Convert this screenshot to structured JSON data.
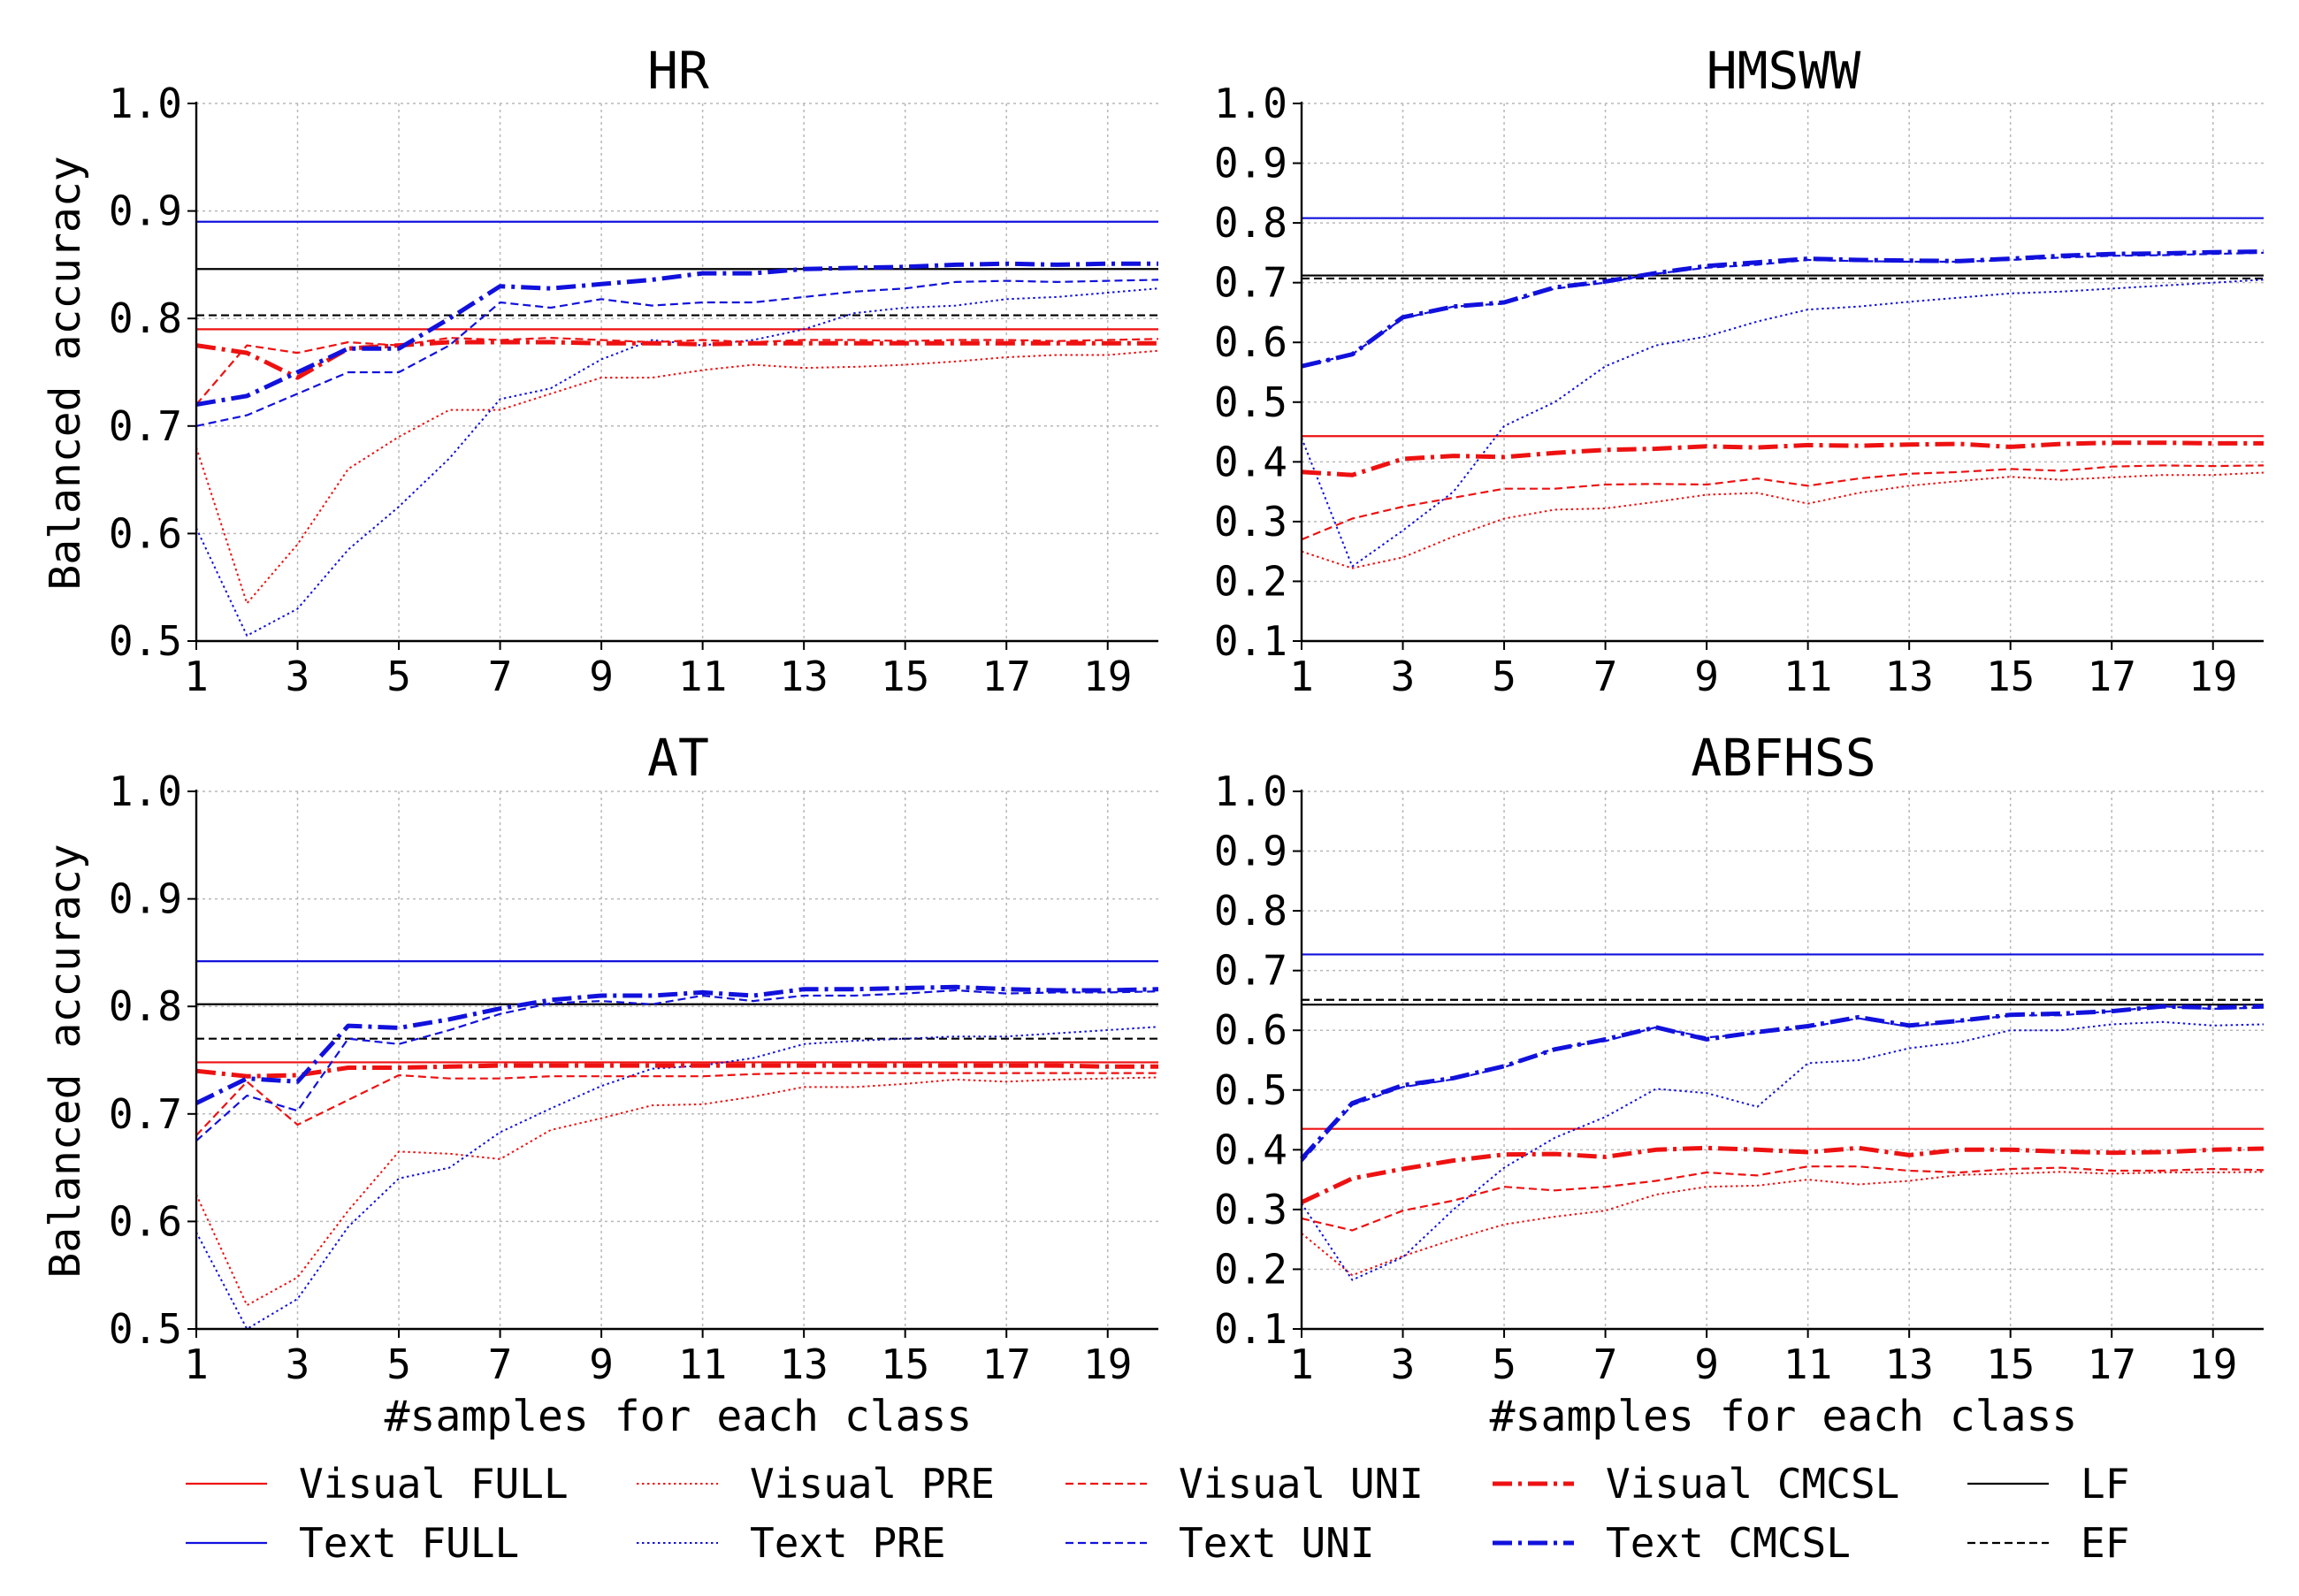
{
  "legend": [
    {
      "label": "Visual FULL",
      "color": "#ee1111",
      "style": "full"
    },
    {
      "label": "Visual PRE",
      "color": "#ee1111",
      "style": "pre"
    },
    {
      "label": "Visual UNI",
      "color": "#ee1111",
      "style": "uni"
    },
    {
      "label": "Visual CMCSL",
      "color": "#ee1111",
      "style": "cmcsl"
    },
    {
      "label": "LF",
      "color": "#000000",
      "style": "full"
    },
    {
      "label": "Text FULL",
      "color": "#1111dd",
      "style": "full"
    },
    {
      "label": "Text PRE",
      "color": "#1111dd",
      "style": "pre"
    },
    {
      "label": "Text UNI",
      "color": "#1111dd",
      "style": "uni"
    },
    {
      "label": "Text CMCSL",
      "color": "#1111dd",
      "style": "cmcsl"
    },
    {
      "label": "EF",
      "color": "#000000",
      "style": "uni"
    }
  ],
  "chart_data": [
    {
      "type": "line",
      "title": "HR",
      "xlabel": "",
      "ylabel": "Balanced accuracy",
      "xlim": [
        1,
        20
      ],
      "ylim": [
        0.5,
        1.0
      ],
      "xticks": [
        "1",
        "3",
        "5",
        "7",
        "9",
        "11",
        "13",
        "15",
        "17",
        "19"
      ],
      "yticks": [
        "0.5",
        "0.6",
        "0.7",
        "0.8",
        "0.9",
        "1.0"
      ],
      "grid": true,
      "x": [
        1,
        2,
        3,
        4,
        5,
        6,
        7,
        8,
        9,
        10,
        11,
        12,
        13,
        14,
        15,
        16,
        17,
        18,
        19,
        20
      ],
      "hlines": [
        {
          "name": "Visual FULL",
          "value": 0.79,
          "color": "#ee1111",
          "style": "full"
        },
        {
          "name": "Text FULL",
          "value": 0.89,
          "color": "#1111dd",
          "style": "full"
        },
        {
          "name": "LF",
          "value": 0.846,
          "color": "#000000",
          "style": "full"
        },
        {
          "name": "EF",
          "value": 0.803,
          "color": "#000000",
          "style": "uni"
        }
      ],
      "series": [
        {
          "name": "Visual PRE",
          "color": "#ee1111",
          "style": "pre",
          "values": [
            0.68,
            0.535,
            0.59,
            0.66,
            0.69,
            0.715,
            0.715,
            0.73,
            0.745,
            0.745,
            0.752,
            0.757,
            0.754,
            0.755,
            0.757,
            0.76,
            0.764,
            0.766,
            0.766,
            0.77
          ]
        },
        {
          "name": "Text PRE",
          "color": "#1111dd",
          "style": "pre",
          "values": [
            0.605,
            0.505,
            0.53,
            0.585,
            0.625,
            0.67,
            0.725,
            0.735,
            0.762,
            0.78,
            0.775,
            0.78,
            0.79,
            0.805,
            0.81,
            0.812,
            0.818,
            0.82,
            0.824,
            0.828
          ]
        },
        {
          "name": "Visual UNI",
          "color": "#ee1111",
          "style": "uni",
          "values": [
            0.72,
            0.775,
            0.768,
            0.778,
            0.775,
            0.782,
            0.78,
            0.782,
            0.78,
            0.778,
            0.78,
            0.778,
            0.78,
            0.78,
            0.779,
            0.78,
            0.78,
            0.779,
            0.78,
            0.781
          ]
        },
        {
          "name": "Text UNI",
          "color": "#1111dd",
          "style": "uni",
          "values": [
            0.7,
            0.71,
            0.73,
            0.75,
            0.75,
            0.775,
            0.815,
            0.81,
            0.818,
            0.812,
            0.815,
            0.815,
            0.82,
            0.825,
            0.828,
            0.834,
            0.835,
            0.834,
            0.835,
            0.836
          ]
        },
        {
          "name": "Visual CMCSL",
          "color": "#ee1111",
          "style": "cmcsl",
          "values": [
            0.775,
            0.768,
            0.745,
            0.772,
            0.775,
            0.778,
            0.778,
            0.778,
            0.777,
            0.777,
            0.776,
            0.777,
            0.777,
            0.777,
            0.777,
            0.777,
            0.777,
            0.777,
            0.777,
            0.777
          ]
        },
        {
          "name": "Text CMCSL",
          "color": "#1111dd",
          "style": "cmcsl",
          "values": [
            0.72,
            0.728,
            0.75,
            0.772,
            0.772,
            0.8,
            0.83,
            0.828,
            0.832,
            0.836,
            0.842,
            0.842,
            0.846,
            0.847,
            0.848,
            0.85,
            0.851,
            0.85,
            0.851,
            0.851
          ]
        }
      ]
    },
    {
      "type": "line",
      "title": "HMSWW",
      "xlabel": "",
      "ylabel": "",
      "xlim": [
        1,
        20
      ],
      "ylim": [
        0.1,
        1.0
      ],
      "xticks": [
        "1",
        "3",
        "5",
        "7",
        "9",
        "11",
        "13",
        "15",
        "17",
        "19"
      ],
      "yticks": [
        "0.1",
        "0.2",
        "0.3",
        "0.4",
        "0.5",
        "0.6",
        "0.7",
        "0.8",
        "0.9",
        "1.0"
      ],
      "grid": true,
      "x": [
        1,
        2,
        3,
        4,
        5,
        6,
        7,
        8,
        9,
        10,
        11,
        12,
        13,
        14,
        15,
        16,
        17,
        18,
        19,
        20
      ],
      "hlines": [
        {
          "name": "Visual FULL",
          "value": 0.443,
          "color": "#ee1111",
          "style": "full"
        },
        {
          "name": "Text FULL",
          "value": 0.808,
          "color": "#1111dd",
          "style": "full"
        },
        {
          "name": "LF",
          "value": 0.712,
          "color": "#000000",
          "style": "full"
        },
        {
          "name": "EF",
          "value": 0.707,
          "color": "#000000",
          "style": "uni"
        }
      ],
      "series": [
        {
          "name": "Visual PRE",
          "color": "#ee1111",
          "style": "pre",
          "values": [
            0.25,
            0.222,
            0.24,
            0.275,
            0.305,
            0.32,
            0.322,
            0.333,
            0.345,
            0.348,
            0.33,
            0.348,
            0.36,
            0.368,
            0.375,
            0.37,
            0.374,
            0.378,
            0.378,
            0.382
          ]
        },
        {
          "name": "Text PRE",
          "color": "#1111dd",
          "style": "pre",
          "values": [
            0.44,
            0.225,
            0.285,
            0.35,
            0.46,
            0.5,
            0.56,
            0.595,
            0.61,
            0.635,
            0.655,
            0.66,
            0.668,
            0.675,
            0.682,
            0.685,
            0.69,
            0.695,
            0.7,
            0.705
          ]
        },
        {
          "name": "Visual UNI",
          "color": "#ee1111",
          "style": "uni",
          "values": [
            0.27,
            0.305,
            0.325,
            0.34,
            0.355,
            0.355,
            0.362,
            0.363,
            0.362,
            0.372,
            0.36,
            0.372,
            0.38,
            0.383,
            0.388,
            0.385,
            0.392,
            0.394,
            0.393,
            0.394
          ]
        },
        {
          "name": "Text UNI",
          "color": "#1111dd",
          "style": "uni",
          "values": [
            0.56,
            0.58,
            0.64,
            0.66,
            0.665,
            0.69,
            0.7,
            0.715,
            0.725,
            0.73,
            0.738,
            0.736,
            0.735,
            0.735,
            0.738,
            0.742,
            0.745,
            0.746,
            0.748,
            0.75
          ]
        },
        {
          "name": "Visual CMCSL",
          "color": "#ee1111",
          "style": "cmcsl",
          "values": [
            0.383,
            0.378,
            0.405,
            0.41,
            0.408,
            0.415,
            0.42,
            0.422,
            0.426,
            0.424,
            0.428,
            0.427,
            0.429,
            0.43,
            0.425,
            0.43,
            0.432,
            0.432,
            0.431,
            0.431
          ]
        },
        {
          "name": "Text CMCSL",
          "color": "#1111dd",
          "style": "cmcsl",
          "values": [
            0.56,
            0.58,
            0.642,
            0.66,
            0.667,
            0.692,
            0.702,
            0.716,
            0.728,
            0.734,
            0.74,
            0.738,
            0.737,
            0.736,
            0.74,
            0.745,
            0.748,
            0.749,
            0.751,
            0.752
          ]
        }
      ]
    },
    {
      "type": "line",
      "title": "AT",
      "xlabel": "#samples for each class",
      "ylabel": "Balanced accuracy",
      "xlim": [
        1,
        20
      ],
      "ylim": [
        0.5,
        1.0
      ],
      "xticks": [
        "1",
        "3",
        "5",
        "7",
        "9",
        "11",
        "13",
        "15",
        "17",
        "19"
      ],
      "yticks": [
        "0.5",
        "0.6",
        "0.7",
        "0.8",
        "0.9",
        "1.0"
      ],
      "grid": true,
      "x": [
        1,
        2,
        3,
        4,
        5,
        6,
        7,
        8,
        9,
        10,
        11,
        12,
        13,
        14,
        15,
        16,
        17,
        18,
        19,
        20
      ],
      "hlines": [
        {
          "name": "Visual FULL",
          "value": 0.748,
          "color": "#ee1111",
          "style": "full"
        },
        {
          "name": "Text FULL",
          "value": 0.842,
          "color": "#1111dd",
          "style": "full"
        },
        {
          "name": "LF",
          "value": 0.802,
          "color": "#000000",
          "style": "full"
        },
        {
          "name": "EF",
          "value": 0.77,
          "color": "#000000",
          "style": "uni"
        }
      ],
      "series": [
        {
          "name": "Visual PRE",
          "color": "#ee1111",
          "style": "pre",
          "values": [
            0.625,
            0.522,
            0.548,
            0.61,
            0.665,
            0.663,
            0.658,
            0.685,
            0.696,
            0.708,
            0.709,
            0.716,
            0.725,
            0.725,
            0.728,
            0.732,
            0.73,
            0.732,
            0.733,
            0.734
          ]
        },
        {
          "name": "Text PRE",
          "color": "#1111dd",
          "style": "pre",
          "values": [
            0.59,
            0.5,
            0.528,
            0.595,
            0.64,
            0.65,
            0.683,
            0.705,
            0.726,
            0.742,
            0.745,
            0.752,
            0.765,
            0.768,
            0.77,
            0.772,
            0.772,
            0.775,
            0.778,
            0.781
          ]
        },
        {
          "name": "Visual UNI",
          "color": "#ee1111",
          "style": "uni",
          "values": [
            0.68,
            0.73,
            0.69,
            0.713,
            0.736,
            0.733,
            0.733,
            0.735,
            0.735,
            0.735,
            0.735,
            0.737,
            0.738,
            0.738,
            0.738,
            0.738,
            0.738,
            0.738,
            0.738,
            0.738
          ]
        },
        {
          "name": "Text UNI",
          "color": "#1111dd",
          "style": "uni",
          "values": [
            0.675,
            0.717,
            0.703,
            0.77,
            0.765,
            0.778,
            0.793,
            0.803,
            0.805,
            0.802,
            0.81,
            0.805,
            0.81,
            0.81,
            0.812,
            0.815,
            0.812,
            0.813,
            0.813,
            0.814
          ]
        },
        {
          "name": "Visual CMCSL",
          "color": "#ee1111",
          "style": "cmcsl",
          "values": [
            0.74,
            0.735,
            0.736,
            0.743,
            0.743,
            0.744,
            0.745,
            0.745,
            0.745,
            0.745,
            0.745,
            0.745,
            0.745,
            0.745,
            0.745,
            0.745,
            0.745,
            0.745,
            0.744,
            0.744
          ]
        },
        {
          "name": "Text CMCSL",
          "color": "#1111dd",
          "style": "cmcsl",
          "values": [
            0.71,
            0.733,
            0.73,
            0.782,
            0.78,
            0.788,
            0.798,
            0.806,
            0.81,
            0.81,
            0.813,
            0.81,
            0.816,
            0.816,
            0.817,
            0.818,
            0.816,
            0.815,
            0.815,
            0.816
          ]
        }
      ]
    },
    {
      "type": "line",
      "title": "ABFHSS",
      "xlabel": "#samples for each class",
      "ylabel": "",
      "xlim": [
        1,
        20
      ],
      "ylim": [
        0.1,
        1.0
      ],
      "xticks": [
        "1",
        "3",
        "5",
        "7",
        "9",
        "11",
        "13",
        "15",
        "17",
        "19"
      ],
      "yticks": [
        "0.1",
        "0.2",
        "0.3",
        "0.4",
        "0.5",
        "0.6",
        "0.7",
        "0.8",
        "0.9",
        "1.0"
      ],
      "grid": true,
      "x": [
        1,
        2,
        3,
        4,
        5,
        6,
        7,
        8,
        9,
        10,
        11,
        12,
        13,
        14,
        15,
        16,
        17,
        18,
        19,
        20
      ],
      "hlines": [
        {
          "name": "Visual FULL",
          "value": 0.435,
          "color": "#ee1111",
          "style": "full"
        },
        {
          "name": "Text FULL",
          "value": 0.727,
          "color": "#1111dd",
          "style": "full"
        },
        {
          "name": "LF",
          "value": 0.643,
          "color": "#000000",
          "style": "full"
        },
        {
          "name": "EF",
          "value": 0.651,
          "color": "#000000",
          "style": "uni"
        }
      ],
      "series": [
        {
          "name": "Visual PRE",
          "color": "#ee1111",
          "style": "pre",
          "values": [
            0.26,
            0.19,
            0.222,
            0.25,
            0.275,
            0.288,
            0.298,
            0.325,
            0.338,
            0.34,
            0.35,
            0.342,
            0.348,
            0.358,
            0.36,
            0.363,
            0.36,
            0.362,
            0.362,
            0.363
          ]
        },
        {
          "name": "Text PRE",
          "color": "#1111dd",
          "style": "pre",
          "values": [
            0.31,
            0.182,
            0.22,
            0.3,
            0.37,
            0.42,
            0.455,
            0.502,
            0.495,
            0.472,
            0.545,
            0.55,
            0.57,
            0.58,
            0.6,
            0.6,
            0.61,
            0.614,
            0.608,
            0.61
          ]
        },
        {
          "name": "Visual UNI",
          "color": "#ee1111",
          "style": "uni",
          "values": [
            0.285,
            0.265,
            0.298,
            0.315,
            0.338,
            0.332,
            0.338,
            0.348,
            0.362,
            0.357,
            0.372,
            0.372,
            0.365,
            0.362,
            0.368,
            0.37,
            0.365,
            0.365,
            0.368,
            0.366
          ]
        },
        {
          "name": "Text UNI",
          "color": "#1111dd",
          "style": "uni",
          "values": [
            0.38,
            0.475,
            0.505,
            0.518,
            0.538,
            0.57,
            0.582,
            0.605,
            0.588,
            0.595,
            0.605,
            0.62,
            0.606,
            0.615,
            0.625,
            0.625,
            0.632,
            0.64,
            0.636,
            0.638
          ]
        },
        {
          "name": "Visual CMCSL",
          "color": "#ee1111",
          "style": "cmcsl",
          "values": [
            0.312,
            0.352,
            0.368,
            0.382,
            0.392,
            0.393,
            0.388,
            0.4,
            0.403,
            0.4,
            0.396,
            0.403,
            0.391,
            0.4,
            0.4,
            0.397,
            0.395,
            0.396,
            0.4,
            0.402
          ]
        },
        {
          "name": "Text CMCSL",
          "color": "#1111dd",
          "style": "cmcsl",
          "values": [
            0.385,
            0.478,
            0.508,
            0.52,
            0.54,
            0.568,
            0.585,
            0.605,
            0.585,
            0.597,
            0.607,
            0.622,
            0.608,
            0.616,
            0.626,
            0.628,
            0.632,
            0.64,
            0.638,
            0.64
          ]
        }
      ]
    }
  ]
}
